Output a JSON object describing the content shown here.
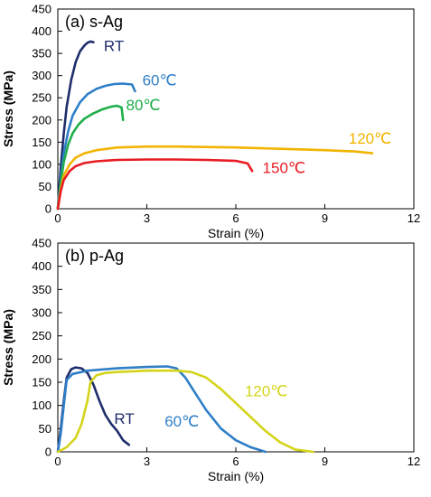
{
  "chart_data": [
    {
      "type": "line",
      "title": "(a) s-Ag",
      "xlabel": "Strain (%)",
      "ylabel": "Stress (MPa)",
      "xlim": [
        0,
        12
      ],
      "ylim": [
        0,
        450
      ],
      "xticks": [
        "0",
        "3",
        "6",
        "9",
        "12"
      ],
      "yticks": [
        "0",
        "50",
        "100",
        "150",
        "200",
        "250",
        "300",
        "350",
        "400",
        "450"
      ],
      "grid": false,
      "series": [
        {
          "name": "RT",
          "color": "#1f2d6b",
          "label_at": [
            1.55,
            355
          ],
          "x": [
            0,
            0.1,
            0.2,
            0.3,
            0.45,
            0.6,
            0.75,
            0.9,
            1.0,
            1.1,
            1.2
          ],
          "y": [
            0,
            95,
            170,
            230,
            290,
            330,
            355,
            368,
            374,
            377,
            375
          ]
        },
        {
          "name": "60℃",
          "color": "#2f7fc8",
          "label_at": [
            2.85,
            278
          ],
          "x": [
            0,
            0.1,
            0.2,
            0.35,
            0.5,
            0.75,
            1.0,
            1.3,
            1.6,
            1.9,
            2.2,
            2.5,
            2.6
          ],
          "y": [
            0,
            70,
            125,
            175,
            210,
            240,
            258,
            270,
            277,
            281,
            282,
            280,
            265
          ]
        },
        {
          "name": "80℃",
          "color": "#1fae4b",
          "label_at": [
            2.3,
            222
          ],
          "x": [
            0,
            0.1,
            0.2,
            0.35,
            0.5,
            0.7,
            0.9,
            1.2,
            1.5,
            1.8,
            2.0,
            2.15,
            2.2
          ],
          "y": [
            0,
            60,
            105,
            145,
            170,
            190,
            203,
            215,
            224,
            230,
            232,
            228,
            200
          ]
        },
        {
          "name": "120℃",
          "color": "#f2b400",
          "label_at": [
            9.8,
            147
          ],
          "x": [
            0,
            0.1,
            0.2,
            0.4,
            0.6,
            0.9,
            1.3,
            2.0,
            3.0,
            4.0,
            5.0,
            6.0,
            7.0,
            8.0,
            9.0,
            10.0,
            10.6
          ],
          "y": [
            0,
            45,
            75,
            100,
            115,
            125,
            132,
            138,
            140,
            140,
            139,
            138,
            136,
            134,
            132,
            129,
            125
          ]
        },
        {
          "name": "150℃",
          "color": "#e81c24",
          "label_at": [
            6.9,
            80
          ],
          "x": [
            0,
            0.1,
            0.2,
            0.4,
            0.6,
            0.9,
            1.3,
            2.0,
            3.0,
            4.0,
            5.0,
            6.0,
            6.4,
            6.55
          ],
          "y": [
            0,
            40,
            65,
            85,
            96,
            103,
            107,
            110,
            111,
            111,
            110,
            108,
            102,
            85
          ]
        }
      ]
    },
    {
      "type": "line",
      "title": "(b) p-Ag",
      "xlabel": "Strain (%)",
      "ylabel": "Stress (MPa)",
      "xlim": [
        0,
        12
      ],
      "ylim": [
        0,
        450
      ],
      "xticks": [
        "0",
        "3",
        "6",
        "9",
        "12"
      ],
      "yticks": [
        "0",
        "50",
        "100",
        "150",
        "200",
        "250",
        "300",
        "350",
        "400",
        "450"
      ],
      "grid": false,
      "series": [
        {
          "name": "RT",
          "color": "#1f2d6b",
          "label_at": [
            1.9,
            60
          ],
          "x": [
            0,
            0.1,
            0.2,
            0.3,
            0.45,
            0.6,
            0.8,
            1.0,
            1.2,
            1.4,
            1.6,
            1.8,
            2.0,
            2.2,
            2.4
          ],
          "y": [
            0,
            50,
            110,
            160,
            178,
            182,
            180,
            170,
            145,
            110,
            80,
            60,
            45,
            25,
            15
          ]
        },
        {
          "name": "60℃",
          "color": "#2f7fc8",
          "label_at": [
            3.6,
            55
          ],
          "x": [
            0,
            0.1,
            0.2,
            0.3,
            0.5,
            1.0,
            2.0,
            3.0,
            3.7,
            4.0,
            4.3,
            4.6,
            5.0,
            5.5,
            6.0,
            6.5,
            7.0
          ],
          "y": [
            0,
            40,
            100,
            155,
            168,
            175,
            180,
            183,
            184,
            180,
            160,
            130,
            90,
            50,
            25,
            10,
            0
          ]
        },
        {
          "name": "120℃",
          "color": "#d4d41a",
          "label_at": [
            6.3,
            120
          ],
          "x": [
            0,
            0.3,
            0.6,
            0.8,
            1.0,
            1.1,
            1.3,
            1.6,
            2.0,
            3.0,
            4.0,
            4.5,
            5.0,
            5.5,
            6.0,
            6.5,
            7.0,
            7.5,
            8.0,
            8.6
          ],
          "y": [
            0,
            10,
            30,
            60,
            110,
            150,
            165,
            170,
            172,
            175,
            175,
            172,
            160,
            135,
            105,
            75,
            45,
            20,
            5,
            0
          ]
        }
      ]
    }
  ]
}
